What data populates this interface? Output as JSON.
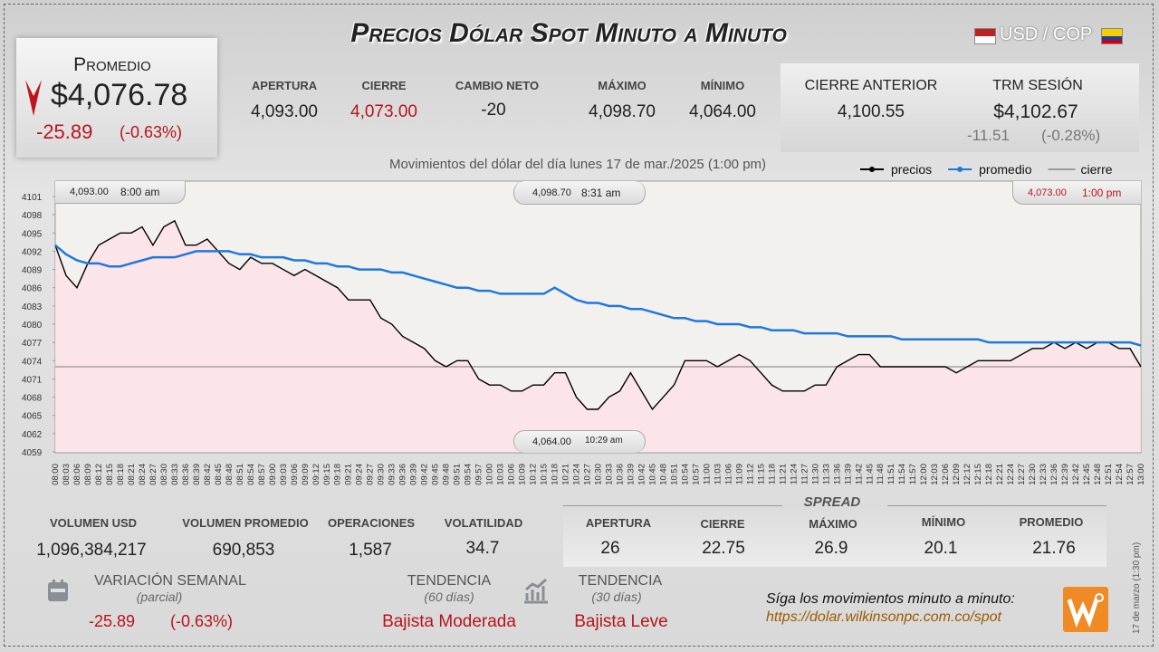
{
  "header": {
    "title": "Precios Dólar Spot Minuto a Minuto",
    "pair": "USD / COP"
  },
  "average": {
    "label": "Promedio",
    "value": "$4,076.78",
    "change": "-25.89",
    "change_pct": "(-0.63%)"
  },
  "top_stats": [
    {
      "label": "APERTURA",
      "value": "4,093.00"
    },
    {
      "label": "CIERRE",
      "value": "4,073.00"
    },
    {
      "label": "CAMBIO NETO",
      "value": "-20"
    },
    {
      "label": "MÁXIMO",
      "value": "4,098.70"
    },
    {
      "label": "MÍNIMO",
      "value": "4,064.00"
    }
  ],
  "previous_close": {
    "label": "CIERRE ANTERIOR",
    "value": "4,100.55"
  },
  "trm": {
    "label": "TRM SESIÓN",
    "value": "$4,102.67",
    "change": "-11.51",
    "change_pct": "(-0.28%)"
  },
  "chart_data": {
    "type": "line",
    "subtitle": "Movimientos del dólar del día lunes 17 de mar./2025 (1:00 pm)",
    "categories": [
      "08:00",
      "08:03",
      "08:06",
      "08:09",
      "08:12",
      "08:15",
      "08:18",
      "08:21",
      "08:24",
      "08:27",
      "08:30",
      "08:33",
      "08:36",
      "08:39",
      "08:42",
      "08:45",
      "08:48",
      "08:51",
      "08:54",
      "08:57",
      "09:00",
      "09:03",
      "09:06",
      "09:09",
      "09:12",
      "09:15",
      "09:18",
      "09:21",
      "09:24",
      "09:27",
      "09:30",
      "09:33",
      "09:36",
      "09:39",
      "09:42",
      "09:45",
      "09:48",
      "09:51",
      "09:54",
      "09:57",
      "10:00",
      "10:03",
      "10:06",
      "10:09",
      "10:12",
      "10:15",
      "10:18",
      "10:21",
      "10:24",
      "10:27",
      "10:30",
      "10:33",
      "10:36",
      "10:39",
      "10:42",
      "10:45",
      "10:48",
      "10:51",
      "10:54",
      "10:57",
      "11:00",
      "11:03",
      "11:06",
      "11:09",
      "11:12",
      "11:15",
      "11:18",
      "11:21",
      "11:24",
      "11:27",
      "11:30",
      "11:33",
      "11:36",
      "11:39",
      "11:42",
      "11:45",
      "11:48",
      "11:51",
      "11:54",
      "11:57",
      "12:00",
      "12:03",
      "12:06",
      "12:09",
      "12:12",
      "12:15",
      "12:18",
      "12:21",
      "12:24",
      "12:27",
      "12:30",
      "12:33",
      "12:36",
      "12:39",
      "12:42",
      "12:45",
      "12:48",
      "12:51",
      "12:54",
      "12:57",
      "13:00"
    ],
    "series": [
      {
        "name": "precios",
        "color": "#000000",
        "values": [
          4093,
          4088,
          4086,
          4090,
          4093,
          4094,
          4095,
          4095,
          4096,
          4093,
          4096,
          4097,
          4093,
          4093,
          4094,
          4092,
          4090,
          4089,
          4091,
          4090,
          4090,
          4089,
          4088,
          4089,
          4088,
          4087,
          4086,
          4084,
          4084,
          4084,
          4081,
          4080,
          4078,
          4077,
          4076,
          4074,
          4073,
          4074,
          4074,
          4071,
          4070,
          4070,
          4069,
          4069,
          4070,
          4070,
          4072,
          4072,
          4068,
          4066,
          4066,
          4068,
          4069,
          4072,
          4069,
          4066,
          4068,
          4070,
          4074,
          4074,
          4074,
          4073,
          4074,
          4075,
          4074,
          4072,
          4070,
          4069,
          4069,
          4069,
          4070,
          4070,
          4073,
          4074,
          4075,
          4075,
          4073,
          4073,
          4073,
          4073,
          4073,
          4073,
          4073,
          4072,
          4073,
          4074,
          4074,
          4074,
          4074,
          4075,
          4076,
          4076,
          4077,
          4076,
          4077,
          4076,
          4077,
          4077,
          4076,
          4076,
          4073
        ]
      },
      {
        "name": "promedio",
        "color": "#1f78e0",
        "values": [
          4093,
          4091.5,
          4090.5,
          4090,
          4090,
          4089.5,
          4089.5,
          4090,
          4090.5,
          4091,
          4091,
          4091,
          4091.5,
          4092,
          4092,
          4092,
          4092,
          4091.5,
          4091.5,
          4091,
          4091,
          4091,
          4090.5,
          4090.5,
          4090,
          4090,
          4089.5,
          4089.5,
          4089,
          4089,
          4089,
          4088.5,
          4088.5,
          4088,
          4087.5,
          4087,
          4086.5,
          4086,
          4086,
          4085.5,
          4085.5,
          4085,
          4085,
          4085,
          4085,
          4085,
          4086,
          4085,
          4084,
          4083.5,
          4083.5,
          4083,
          4083,
          4082.5,
          4082.5,
          4082,
          4081.5,
          4081,
          4081,
          4080.5,
          4080.5,
          4080,
          4080,
          4080,
          4079.5,
          4079.5,
          4079,
          4079,
          4079,
          4078.5,
          4078.5,
          4078.5,
          4078.5,
          4078,
          4078,
          4078,
          4078,
          4078,
          4077.5,
          4077.5,
          4077.5,
          4077.5,
          4077.5,
          4077.5,
          4077.5,
          4077.5,
          4077,
          4077,
          4077,
          4077,
          4077,
          4077,
          4077,
          4077,
          4077,
          4077,
          4077,
          4077,
          4077,
          4077,
          4076.5
        ]
      }
    ],
    "reference_line": {
      "name": "cierre",
      "color": "#555555",
      "value": 4073
    },
    "ylim": [
      4059,
      4101
    ],
    "yticks": [
      4059,
      4062,
      4065,
      4068,
      4071,
      4074,
      4077,
      4080,
      4083,
      4086,
      4089,
      4092,
      4095,
      4098,
      4101
    ],
    "area_color": "#fde3e6",
    "annotations": [
      {
        "price": "4,093.00",
        "time": "8:00 am"
      },
      {
        "price": "4,098.70",
        "time": "8:31 am"
      },
      {
        "price": "4,073.00",
        "time": "1:00 pm"
      },
      {
        "price": "4,064.00",
        "time": "10:29 am"
      }
    ]
  },
  "volume_stats": [
    {
      "label": "VOLUMEN USD",
      "value": "1,096,384,217"
    },
    {
      "label": "VOLUMEN PROMEDIO",
      "value": "690,853"
    },
    {
      "label": "OPERACIONES",
      "value": "1,587"
    },
    {
      "label": "VOLATILIDAD",
      "value": "34.7"
    }
  ],
  "spread": {
    "title": "SPREAD",
    "stats": [
      {
        "label": "APERTURA",
        "value": "26"
      },
      {
        "label": "CIERRE",
        "value": "22.75"
      },
      {
        "label": "MÁXIMO",
        "value": "26.9"
      },
      {
        "label": "MÍNIMO",
        "value": "20.1"
      },
      {
        "label": "PROMEDIO",
        "value": "21.76"
      }
    ]
  },
  "weekly": {
    "label": "VARIACIÓN SEMANAL",
    "note": "(parcial)",
    "change": "-25.89",
    "change_pct": "(-0.63%)"
  },
  "trend_60": {
    "label": "TENDENCIA",
    "note": "(60 días)",
    "value": "Bajista Moderada"
  },
  "trend_30": {
    "label": "TENDENCIA",
    "note": "(30 días)",
    "value": "Bajista Leve"
  },
  "footer": {
    "prompt": "Síga los movimientos minuto a minuto:",
    "url": "https://dolar.wilkinsonpc.com.co/spot",
    "timestamp": "17 de marzo (1:30 pm)"
  }
}
